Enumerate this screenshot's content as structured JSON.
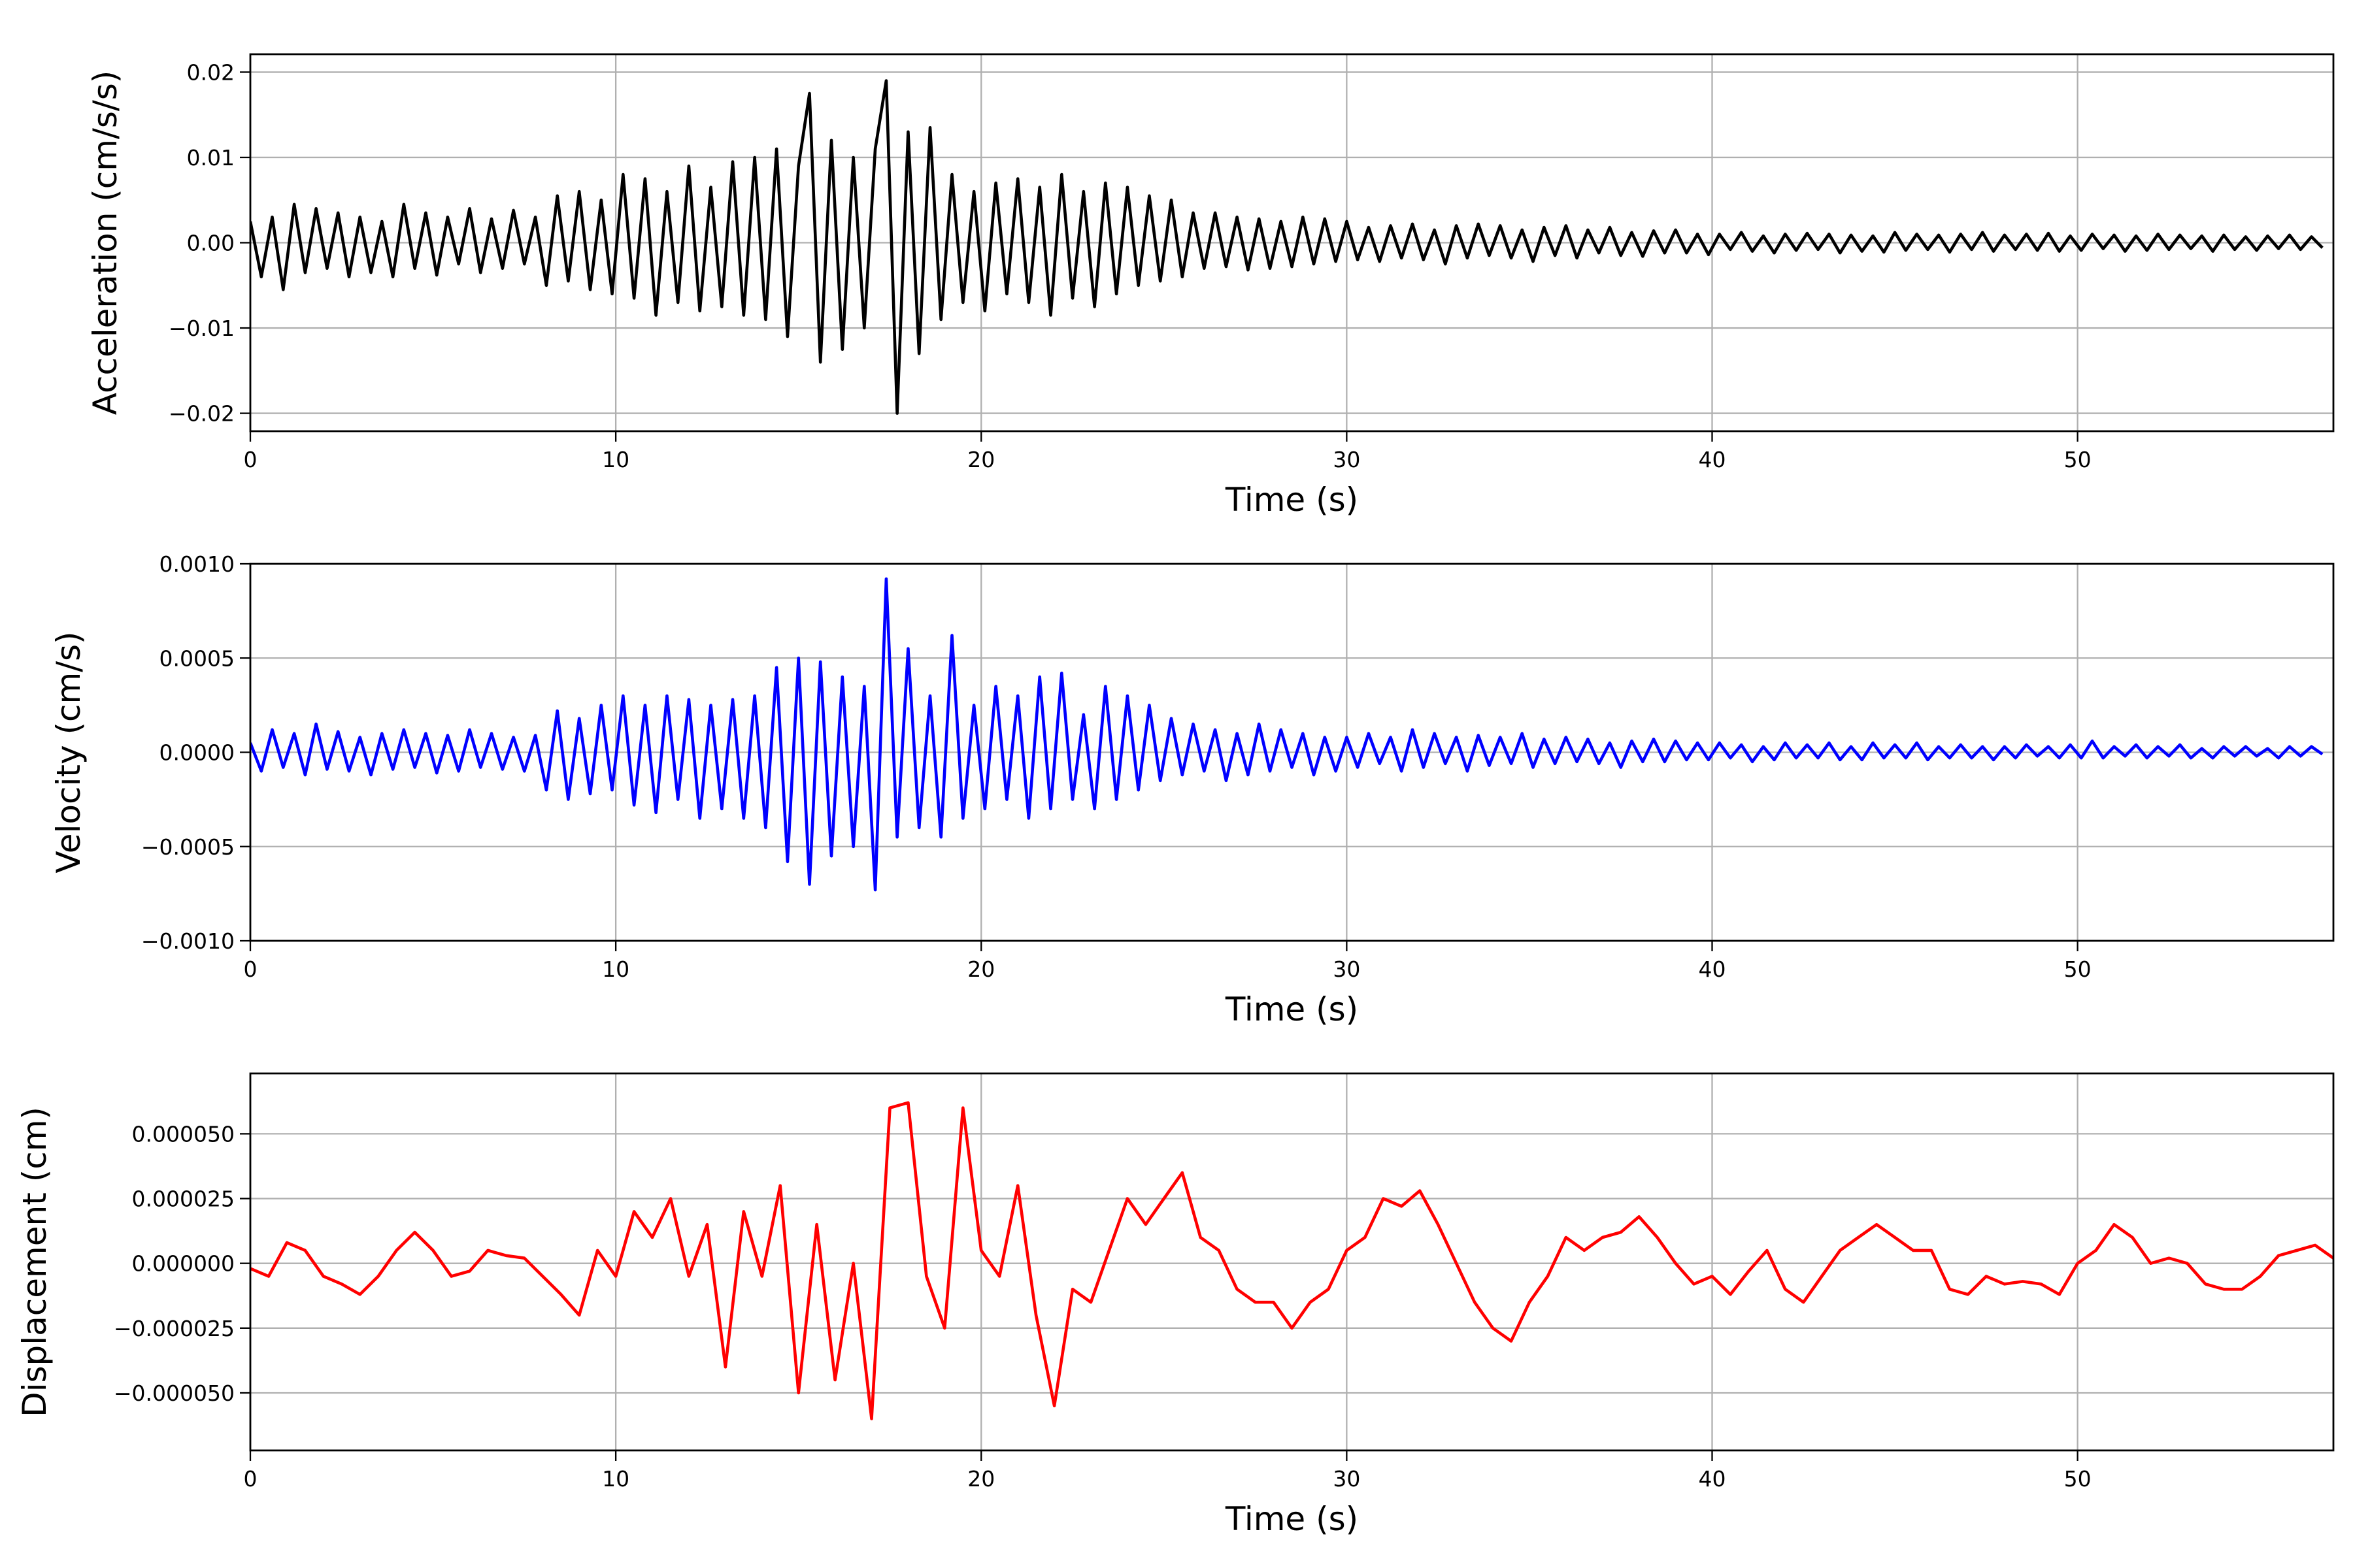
{
  "chart_data": [
    {
      "type": "line",
      "title": "",
      "xlabel": "Time (s)",
      "ylabel": "Acceleration (cm/s/s)",
      "xlim": [
        0,
        57
      ],
      "ylim": [
        -0.0221,
        0.0221
      ],
      "xticks": [
        0,
        10,
        20,
        30,
        40,
        50
      ],
      "xtick_labels": [
        "0",
        "10",
        "20",
        "30",
        "40",
        "50"
      ],
      "yticks": [
        -0.02,
        -0.01,
        0,
        0.01,
        0.02
      ],
      "ytick_labels": [
        "−0.02",
        "−0.01",
        "0.00",
        "0.01",
        "0.02"
      ],
      "grid": true,
      "color": "#000000",
      "t0": 0,
      "dt": 0.3,
      "value_scale": 0.0001,
      "values": [
        25,
        -40,
        30,
        -55,
        45,
        -35,
        40,
        -30,
        35,
        -40,
        30,
        -35,
        25,
        -40,
        45,
        -30,
        35,
        -38,
        30,
        -25,
        40,
        -35,
        28,
        -30,
        38,
        -25,
        30,
        -50,
        55,
        -45,
        60,
        -55,
        50,
        -60,
        80,
        -65,
        75,
        -85,
        60,
        -70,
        90,
        -80,
        65,
        -75,
        95,
        -85,
        100,
        -90,
        110,
        -110,
        90,
        175,
        -140,
        120,
        -125,
        100,
        -100,
        110,
        190,
        -200,
        130,
        -130,
        135,
        -90,
        80,
        -70,
        60,
        -80,
        70,
        -60,
        75,
        -70,
        65,
        -85,
        80,
        -65,
        60,
        -75,
        70,
        -60,
        65,
        -50,
        55,
        -45,
        50,
        -40,
        35,
        -30,
        35,
        -28,
        30,
        -32,
        28,
        -30,
        25,
        -28,
        30,
        -25,
        28,
        -22,
        25,
        -20,
        18,
        -22,
        20,
        -18,
        22,
        -20,
        15,
        -25,
        20,
        -18,
        22,
        -15,
        20,
        -18,
        15,
        -22,
        18,
        -15,
        20,
        -18,
        15,
        -12,
        18,
        -15,
        12,
        -16,
        14,
        -12,
        15,
        -12,
        10,
        -14,
        10,
        -8,
        12,
        -10,
        8,
        -12,
        10,
        -9,
        11,
        -8,
        10,
        -12,
        9,
        -10,
        8,
        -11,
        12,
        -9,
        10,
        -8,
        9,
        -11,
        10,
        -8,
        12,
        -10,
        9,
        -8,
        10,
        -9,
        11,
        -10,
        8,
        -9,
        10,
        -7,
        9,
        -10,
        8,
        -9,
        10,
        -8,
        9,
        -7,
        8,
        -10,
        9,
        -8,
        7,
        -9,
        8,
        -7,
        9,
        -8,
        7,
        -6
      ]
    },
    {
      "type": "line",
      "title": "",
      "xlabel": "Time (s)",
      "ylabel": "Velocity (cm/s)",
      "xlim": [
        0,
        57
      ],
      "ylim": [
        -0.001,
        0.001
      ],
      "xticks": [
        0,
        10,
        20,
        30,
        40,
        50
      ],
      "xtick_labels": [
        "0",
        "10",
        "20",
        "30",
        "40",
        "50"
      ],
      "yticks": [
        -0.001,
        -0.0005,
        0,
        0.0005,
        0.001
      ],
      "ytick_labels": [
        "−0.0010",
        "−0.0005",
        "0.0000",
        "0.0005",
        "0.0010"
      ],
      "grid": true,
      "color": "#0000ff",
      "t0": 0,
      "dt": 0.3,
      "value_scale": 1e-05,
      "values": [
        5,
        -10,
        12,
        -8,
        10,
        -12,
        15,
        -9,
        11,
        -10,
        8,
        -12,
        10,
        -9,
        12,
        -8,
        10,
        -11,
        9,
        -10,
        12,
        -8,
        10,
        -9,
        8,
        -10,
        9,
        -20,
        22,
        -25,
        18,
        -22,
        25,
        -20,
        30,
        -28,
        25,
        -32,
        30,
        -25,
        28,
        -35,
        25,
        -30,
        28,
        -35,
        30,
        -40,
        45,
        -58,
        50,
        -70,
        48,
        -55,
        40,
        -50,
        35,
        -73,
        92,
        -45,
        55,
        -40,
        30,
        -45,
        62,
        -35,
        25,
        -30,
        35,
        -25,
        30,
        -35,
        40,
        -30,
        42,
        -25,
        20,
        -30,
        35,
        -25,
        30,
        -20,
        25,
        -15,
        18,
        -12,
        15,
        -10,
        12,
        -15,
        10,
        -12,
        15,
        -10,
        12,
        -8,
        10,
        -12,
        8,
        -10,
        8,
        -8,
        10,
        -6,
        8,
        -10,
        12,
        -8,
        10,
        -6,
        8,
        -10,
        9,
        -7,
        8,
        -6,
        10,
        -8,
        7,
        -6,
        8,
        -5,
        7,
        -6,
        5,
        -8,
        6,
        -5,
        7,
        -5,
        6,
        -4,
        5,
        -4,
        5,
        -3,
        4,
        -5,
        3,
        -4,
        5,
        -3,
        4,
        -3,
        5,
        -4,
        3,
        -4,
        5,
        -3,
        4,
        -3,
        5,
        -4,
        3,
        -3,
        4,
        -3,
        3,
        -4,
        3,
        -3,
        4,
        -2,
        3,
        -3,
        4,
        -3,
        6,
        -3,
        3,
        -2,
        4,
        -3,
        3,
        -2,
        4,
        -3,
        2,
        -3,
        3,
        -2,
        3,
        -2,
        2,
        -3,
        3,
        -2,
        3,
        -1
      ]
    },
    {
      "type": "line",
      "title": "",
      "xlabel": "Time (s)",
      "ylabel": "Displacement (cm)",
      "xlim": [
        0,
        57
      ],
      "ylim": [
        -7.22e-05,
        7.33e-05
      ],
      "xticks": [
        0,
        10,
        20,
        30,
        40,
        50
      ],
      "xtick_labels": [
        "0",
        "10",
        "20",
        "30",
        "40",
        "50"
      ],
      "yticks": [
        -5e-05,
        -2.5e-05,
        0,
        2.5e-05,
        5e-05
      ],
      "ytick_labels": [
        "−0.000050",
        "−0.000025",
        "0.000000",
        "0.000025",
        "0.000050"
      ],
      "grid": true,
      "color": "#ff0000",
      "t0": 0,
      "dt": 0.5,
      "value_scale": 1e-06,
      "values": [
        -2,
        -5,
        8,
        5,
        -5,
        -8,
        -12,
        -5,
        5,
        12,
        5,
        -5,
        -3,
        5,
        3,
        2,
        -5,
        -12,
        -20,
        5,
        -5,
        20,
        10,
        25,
        -5,
        15,
        -40,
        20,
        -5,
        30,
        -50,
        15,
        -45,
        0,
        -60,
        60,
        62,
        -5,
        -25,
        60,
        5,
        -5,
        30,
        -20,
        -55,
        -10,
        -15,
        5,
        25,
        15,
        25,
        35,
        10,
        5,
        -10,
        -15,
        -15,
        -25,
        -15,
        -10,
        5,
        10,
        25,
        22,
        28,
        15,
        0,
        -15,
        -25,
        -30,
        -15,
        -5,
        10,
        5,
        10,
        12,
        18,
        10,
        0,
        -8,
        -5,
        -12,
        -3,
        5,
        -10,
        -15,
        -5,
        5,
        10,
        15,
        10,
        5,
        5,
        -10,
        -12,
        -5,
        -8,
        -7,
        -8,
        -12,
        0,
        5,
        15,
        10,
        0,
        2,
        0,
        -8,
        -10,
        -10,
        -5,
        3,
        5,
        7,
        2
      ]
    }
  ]
}
